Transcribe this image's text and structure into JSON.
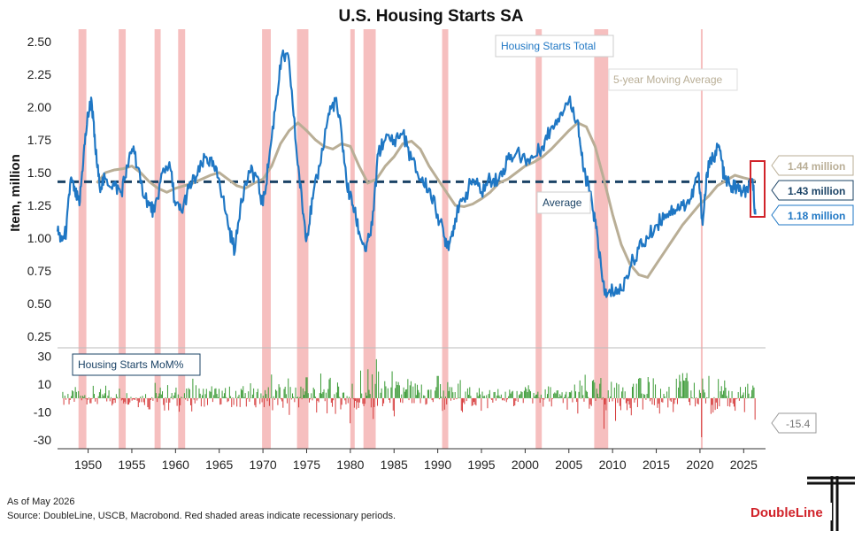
{
  "chart_data": [
    {
      "type": "line",
      "title": "U.S. Housing Starts SA",
      "ylabel": "Item, million",
      "xlim": [
        1946.5,
        2027.5
      ],
      "ylim": [
        0.25,
        2.5
      ],
      "yticks": [
        "2.50",
        "2.25",
        "2.00",
        "1.75",
        "1.50",
        "1.25",
        "1.00",
        "0.75",
        "0.50",
        "0.25"
      ],
      "ytick_values": [
        2.5,
        2.25,
        2.0,
        1.75,
        1.5,
        1.25,
        1.0,
        0.75,
        0.5,
        0.25
      ],
      "xticks": [
        "1950",
        "1955",
        "1960",
        "1965",
        "1970",
        "1975",
        "1980",
        "1985",
        "1990",
        "1995",
        "2000",
        "2005",
        "2010",
        "2015",
        "2020",
        "2025"
      ],
      "xtick_values": [
        1950,
        1955,
        1960,
        1965,
        1970,
        1975,
        1980,
        1985,
        1990,
        1995,
        2000,
        2005,
        2010,
        2015,
        2020,
        2025
      ],
      "recessions": [
        [
          1948.9,
          1949.8
        ],
        [
          1953.5,
          1954.3
        ],
        [
          1957.6,
          1958.3
        ],
        [
          1960.3,
          1961.1
        ],
        [
          1969.9,
          1970.9
        ],
        [
          1973.9,
          1975.2
        ],
        [
          1980.0,
          1980.5
        ],
        [
          1981.5,
          1982.9
        ],
        [
          1990.5,
          1991.2
        ],
        [
          2001.2,
          2001.9
        ],
        [
          2007.9,
          2009.5
        ],
        [
          2020.1,
          2020.3
        ]
      ],
      "annotations": {
        "series_total": "Housing Starts Total",
        "series_ma": "5-year Moving Average",
        "average_label": "Average",
        "ma_value": "1.44 million",
        "avg_value": "1.43 million",
        "total_value": "1.18 million"
      },
      "average": 1.43,
      "colors": {
        "total": "#1f77c4",
        "ma": "#b9ae96",
        "average": "#1b4366",
        "recession": "#f4b4b4",
        "highlight": "#d1232a"
      },
      "series": [
        {
          "name": "Housing Starts Total",
          "x": [
            1946.5,
            1947,
            1947.5,
            1948,
            1948.5,
            1949,
            1949.5,
            1950,
            1950.4,
            1950.8,
            1951.3,
            1952,
            1953,
            1953.8,
            1954.5,
            1955.2,
            1956,
            1957,
            1957.6,
            1958.5,
            1959.3,
            1960,
            1960.7,
            1961.5,
            1962.5,
            1963.5,
            1964.2,
            1965,
            1966,
            1966.8,
            1967.5,
            1968.5,
            1969.2,
            1970,
            1970.7,
            1971.5,
            1972.2,
            1973,
            1973.8,
            1974.5,
            1975,
            1975.7,
            1976.5,
            1977.5,
            1978.3,
            1979,
            1979.6,
            1980.3,
            1981,
            1981.8,
            1982.5,
            1983.2,
            1984,
            1985,
            1986,
            1987,
            1988,
            1989,
            1990,
            1990.8,
            1991.3,
            1992,
            1993,
            1994,
            1995,
            1996,
            1997,
            1998,
            1999,
            2000,
            2001,
            2002,
            2003,
            2004,
            2005,
            2006,
            2006.6,
            2007.2,
            2007.8,
            2008.3,
            2008.8,
            2009.3,
            2010,
            2011,
            2012,
            2013,
            2014,
            2015,
            2016,
            2017,
            2018,
            2019,
            2019.8,
            2020.3,
            2020.8,
            2021.5,
            2022.2,
            2022.8,
            2023.5,
            2024.2,
            2024.9,
            2025.5,
            2026.0,
            2026.35
          ],
          "y": [
            1.05,
            0.98,
            1.05,
            1.45,
            1.35,
            1.25,
            1.65,
            1.95,
            2.05,
            1.7,
            1.4,
            1.45,
            1.4,
            1.35,
            1.55,
            1.7,
            1.42,
            1.25,
            1.2,
            1.5,
            1.58,
            1.25,
            1.2,
            1.38,
            1.48,
            1.62,
            1.55,
            1.45,
            1.1,
            0.9,
            1.3,
            1.5,
            1.48,
            1.25,
            1.6,
            2.05,
            2.4,
            2.35,
            1.7,
            1.25,
            1.0,
            1.3,
            1.55,
            1.95,
            2.05,
            1.8,
            1.4,
            1.25,
            1.05,
            0.9,
            1.1,
            1.65,
            1.75,
            1.75,
            1.8,
            1.6,
            1.45,
            1.38,
            1.18,
            1.0,
            0.95,
            1.15,
            1.3,
            1.45,
            1.35,
            1.45,
            1.45,
            1.6,
            1.65,
            1.6,
            1.62,
            1.7,
            1.85,
            1.95,
            2.05,
            1.9,
            1.55,
            1.4,
            1.2,
            1.0,
            0.7,
            0.55,
            0.6,
            0.6,
            0.78,
            0.92,
            1.0,
            1.1,
            1.18,
            1.22,
            1.25,
            1.3,
            1.5,
            1.1,
            1.5,
            1.62,
            1.7,
            1.45,
            1.4,
            1.38,
            1.35,
            1.35,
            1.45,
            1.18
          ]
        },
        {
          "name": "5-year Moving Average",
          "x": [
            1951,
            1952,
            1953,
            1954,
            1955,
            1956,
            1957,
            1958,
            1959,
            1960,
            1961,
            1962,
            1963,
            1964,
            1965,
            1966,
            1967,
            1968,
            1969,
            1970,
            1971,
            1972,
            1973,
            1974,
            1975,
            1976,
            1977,
            1978,
            1979,
            1980,
            1981,
            1982,
            1983,
            1984,
            1985,
            1986,
            1987,
            1988,
            1989,
            1990,
            1991,
            1992,
            1993,
            1994,
            1995,
            1996,
            1997,
            1998,
            1999,
            2000,
            2001,
            2002,
            2003,
            2004,
            2005,
            2006,
            2007,
            2008,
            2009,
            2010,
            2011,
            2012,
            2013,
            2014,
            2015,
            2016,
            2017,
            2018,
            2019,
            2020,
            2021,
            2022,
            2023,
            2024,
            2025,
            2026.3
          ],
          "y": [
            1.42,
            1.5,
            1.52,
            1.53,
            1.55,
            1.5,
            1.43,
            1.38,
            1.35,
            1.38,
            1.4,
            1.42,
            1.45,
            1.48,
            1.5,
            1.45,
            1.4,
            1.38,
            1.42,
            1.45,
            1.55,
            1.72,
            1.82,
            1.88,
            1.82,
            1.75,
            1.7,
            1.68,
            1.72,
            1.7,
            1.55,
            1.42,
            1.45,
            1.55,
            1.62,
            1.72,
            1.74,
            1.68,
            1.55,
            1.45,
            1.35,
            1.25,
            1.24,
            1.26,
            1.3,
            1.35,
            1.42,
            1.45,
            1.5,
            1.55,
            1.58,
            1.62,
            1.68,
            1.75,
            1.82,
            1.88,
            1.85,
            1.7,
            1.45,
            1.18,
            0.95,
            0.8,
            0.72,
            0.7,
            0.8,
            0.9,
            1.0,
            1.1,
            1.18,
            1.26,
            1.32,
            1.4,
            1.44,
            1.48,
            1.46,
            1.44
          ]
        },
        {
          "name": "Average",
          "x": [
            1946.5,
            2026.5
          ],
          "y": [
            1.43,
            1.43
          ]
        }
      ]
    },
    {
      "type": "bar",
      "title": "Housing Starts MoM%",
      "ylim": [
        -35,
        33
      ],
      "yticks": [
        "30",
        "10",
        "-10",
        "-30"
      ],
      "ytick_values": [
        30,
        10,
        -10,
        -30
      ],
      "last_value_label": "-15.4",
      "colors": {
        "positive": "#3a9a35",
        "negative": "#d63b3b",
        "annotation_box": "#999999"
      },
      "anchor_points": {
        "x": [
          1947,
          1952,
          1957,
          1962,
          1967,
          1971,
          1973,
          1975,
          1980,
          1983,
          1985,
          1990,
          1995,
          2000,
          2006,
          2009,
          2013,
          2018,
          2020.2,
          2021,
          2024,
          2026.35
        ],
        "y": [
          7,
          9,
          -8,
          14,
          -6,
          17,
          -12,
          15,
          -18,
          28,
          -13,
          16,
          -9,
          8,
          -11,
          -22,
          14,
          18,
          -28,
          16,
          -9,
          -15.4
        ]
      }
    }
  ],
  "footer": {
    "as_of": "As of May 2026",
    "source": "Source: DoubleLine, USCB, Macrobond. Red shaded areas indicate recessionary periods.",
    "logo_text": "DoubleLine"
  }
}
